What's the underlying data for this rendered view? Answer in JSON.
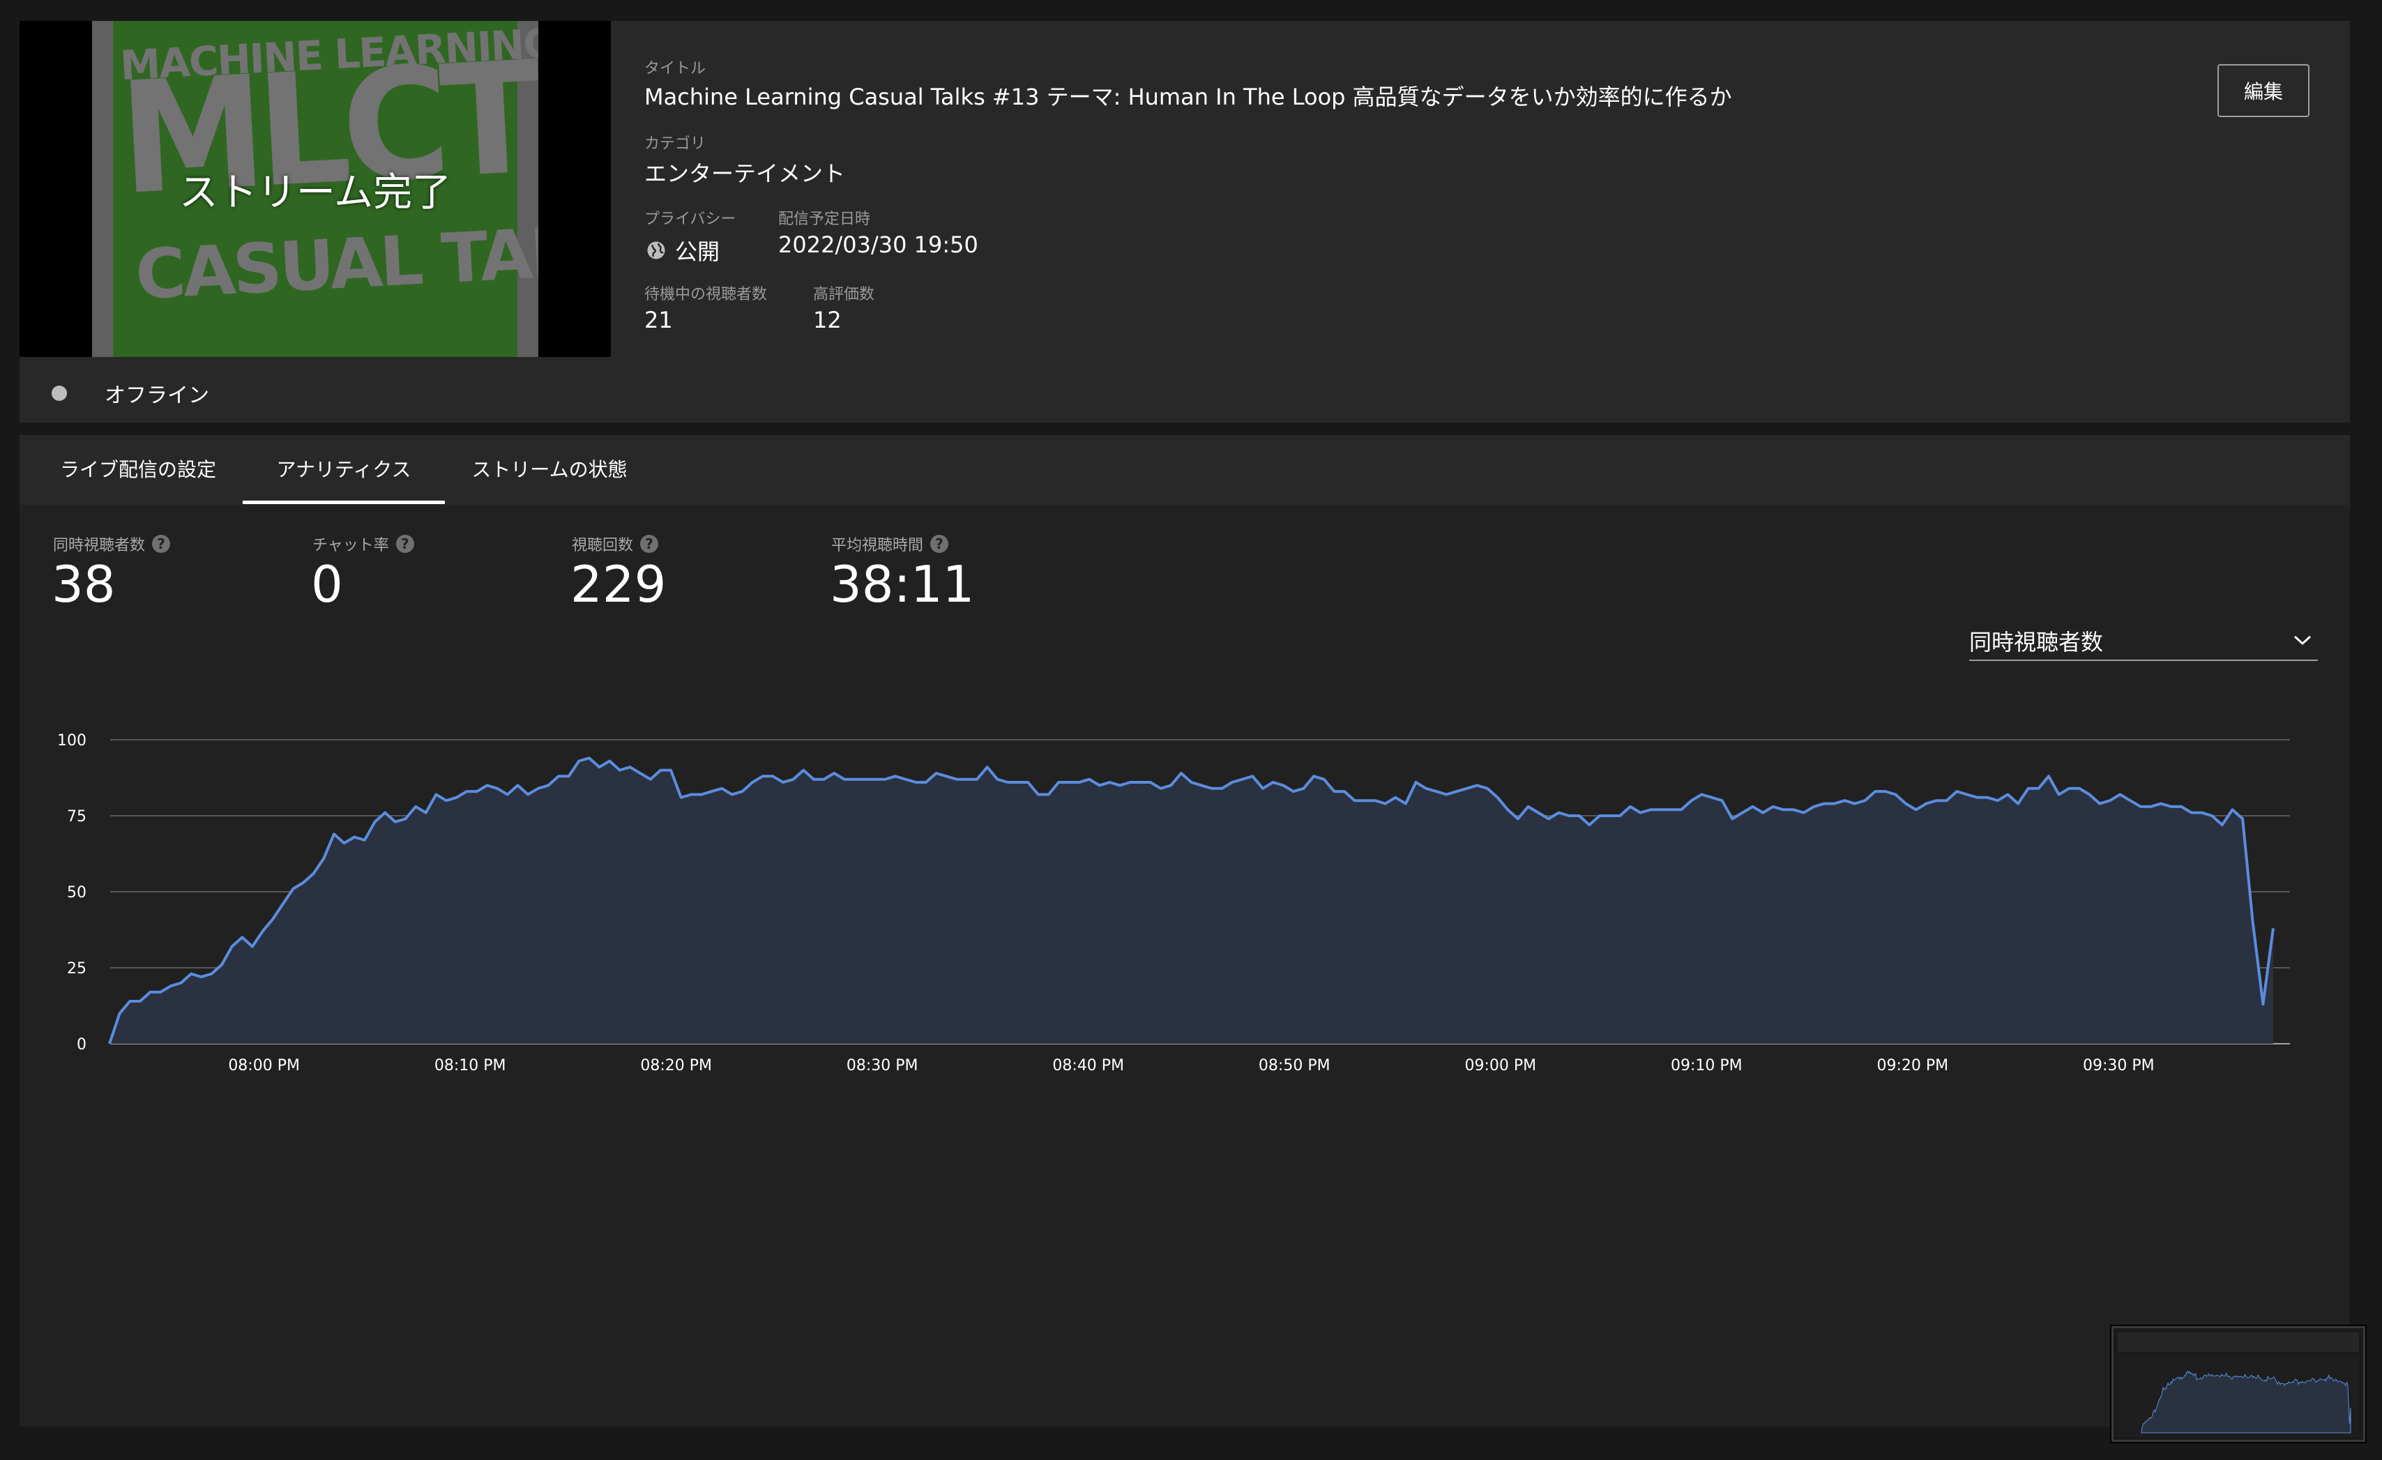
{
  "stream": {
    "thumbnail_status": "ストリーム完了",
    "thumbnail_text": {
      "line1": "MACHINE LEARNING",
      "line2": "MLCT",
      "line3": "CASUAL TALK"
    },
    "connection_status": "オフライン"
  },
  "details": {
    "title_label": "タイトル",
    "title": "Machine Learning Casual Talks #13 テーマ: Human In The Loop 高品質なデータをいか効率的に作るか",
    "category_label": "カテゴリ",
    "category": "エンターテイメント",
    "privacy_label": "プライバシー",
    "privacy": "公開",
    "privacy_icon": "globe-icon",
    "scheduled_label": "配信予定日時",
    "scheduled": "2022/03/30 19:50",
    "waiting_label": "待機中の視聴者数",
    "waiting": "21",
    "likes_label": "高評価数",
    "likes": "12",
    "edit_label": "編集"
  },
  "tabs": [
    {
      "label": "ライブ配信の設定",
      "active": false
    },
    {
      "label": "アナリティクス",
      "active": true
    },
    {
      "label": "ストリームの状態",
      "active": false
    }
  ],
  "stats": [
    {
      "label": "同時視聴者数",
      "value": "38"
    },
    {
      "label": "チャット率",
      "value": "0"
    },
    {
      "label": "視聴回数",
      "value": "229"
    },
    {
      "label": "平均視聴時間",
      "value": "38:11"
    }
  ],
  "metric_select": {
    "value": "同時視聴者数"
  },
  "colors": {
    "line": "#5b8dde",
    "fill": "#2a3140",
    "grid": "#6a6a6a",
    "background": "#212121"
  },
  "chart_data": {
    "type": "area",
    "title": "",
    "xlabel": "",
    "ylabel": "",
    "ylim": [
      0,
      100
    ],
    "yticks": [
      0,
      25,
      50,
      75,
      100
    ],
    "x_tick_labels": [
      "08:00 PM",
      "08:10 PM",
      "08:20 PM",
      "08:30 PM",
      "08:40 PM",
      "08:50 PM",
      "09:00 PM",
      "09:10 PM",
      "09:20 PM",
      "09:30 PM"
    ],
    "x_start_minute": -7.5,
    "x_end_minute": 97.5,
    "series": [
      {
        "values": [
          0,
          10,
          14,
          14,
          17,
          17,
          19,
          20,
          23,
          22,
          23,
          26,
          32,
          35,
          32,
          37,
          41,
          46,
          51,
          53,
          56,
          61,
          69,
          66,
          68,
          67,
          73,
          76,
          73,
          74,
          78,
          76,
          82,
          80,
          81,
          83,
          83,
          85,
          84,
          82,
          85,
          82,
          84,
          85,
          88,
          88,
          93,
          94,
          91,
          93,
          90,
          91,
          89,
          87,
          90,
          90,
          81,
          82,
          82,
          83,
          84,
          82,
          83,
          86,
          88,
          88,
          86,
          87,
          90,
          87,
          87,
          89,
          87,
          87,
          87,
          87,
          87,
          88,
          87,
          86,
          86,
          89,
          88,
          87,
          87,
          87,
          91,
          87,
          86,
          86,
          86,
          82,
          82,
          86,
          86,
          86,
          87,
          85,
          86,
          85,
          86,
          86,
          86,
          84,
          85,
          89,
          86,
          85,
          84,
          84,
          86,
          87,
          88,
          84,
          86,
          85,
          83,
          84,
          88,
          87,
          83,
          83,
          80,
          80,
          80,
          79,
          81,
          79,
          86,
          84,
          83,
          82,
          83,
          84,
          85,
          84,
          81,
          77,
          74,
          78,
          76,
          74,
          76,
          75,
          75,
          72,
          75,
          75,
          75,
          78,
          76,
          77,
          77,
          77,
          77,
          80,
          82,
          81,
          80,
          74,
          76,
          78,
          76,
          78,
          77,
          77,
          76,
          78,
          79,
          79,
          80,
          79,
          80,
          83,
          83,
          82,
          79,
          77,
          79,
          80,
          80,
          83,
          82,
          81,
          81,
          80,
          82,
          79,
          84,
          84,
          88,
          82,
          84,
          84,
          82,
          79,
          80,
          82,
          80,
          78,
          78,
          79,
          78,
          78,
          76,
          76,
          75,
          72,
          77,
          74,
          40,
          13,
          38
        ]
      }
    ]
  }
}
